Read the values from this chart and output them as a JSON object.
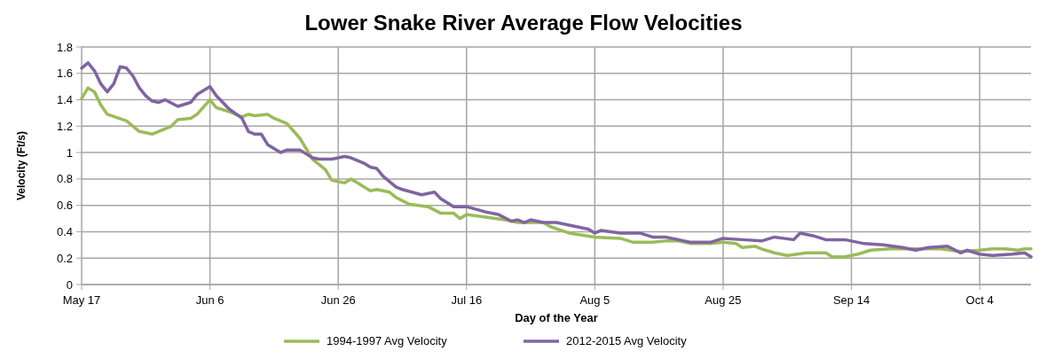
{
  "chart_data": {
    "type": "line",
    "title": "Lower Snake River Average Flow Velocities",
    "xlabel": "Day of the Year",
    "ylabel": "Velocity (Ft/s)",
    "xlim": [
      "--05-17",
      "--10-12"
    ],
    "xticks": [
      {
        "value": "--05-17",
        "label": "May 17"
      },
      {
        "value": "--06-06",
        "label": "Jun 6"
      },
      {
        "value": "--06-26",
        "label": "Jun 26"
      },
      {
        "value": "--07-16",
        "label": "Jul 16"
      },
      {
        "value": "--08-05",
        "label": "Aug 5"
      },
      {
        "value": "--08-25",
        "label": "Aug 25"
      },
      {
        "value": "--09-14",
        "label": "Sep 14"
      },
      {
        "value": "--10-04",
        "label": "Oct 4"
      }
    ],
    "ylim": [
      0,
      1.8
    ],
    "yticks": [
      0,
      0.2,
      0.4,
      0.6,
      0.8,
      1,
      1.2,
      1.4,
      1.6,
      1.8
    ],
    "grid": true,
    "legend": "bottom",
    "marker": "none",
    "line_style": "solid",
    "series": [
      {
        "name": "1994-1997 Avg Velocity",
        "color": "#9bbb59",
        "x": [
          "--05-17",
          "--05-18",
          "--05-19",
          "--05-20",
          "--05-21",
          "--05-24",
          "--05-26",
          "--05-28",
          "--05-30",
          "--05-31",
          "--06-01",
          "--06-03",
          "--06-04",
          "--06-06",
          "--06-07",
          "--06-09",
          "--06-11",
          "--06-12",
          "--06-13",
          "--06-15",
          "--06-16",
          "--06-18",
          "--06-20",
          "--06-22",
          "--06-24",
          "--06-25",
          "--06-27",
          "--06-28",
          "--06-29",
          "--07-01",
          "--07-02",
          "--07-04",
          "--07-05",
          "--07-07",
          "--07-10",
          "--07-12",
          "--07-14",
          "--07-15",
          "--07-16",
          "--07-19",
          "--07-22",
          "--07-24",
          "--07-28",
          "--07-29",
          "--08-01",
          "--08-05",
          "--08-09",
          "--08-11",
          "--08-14",
          "--08-16",
          "--08-18",
          "--08-20",
          "--08-23",
          "--08-25",
          "--08-27",
          "--08-28",
          "--08-30",
          "--08-31",
          "--09-02",
          "--09-04",
          "--09-07",
          "--09-10",
          "--09-11",
          "--09-13",
          "--09-15",
          "--09-17",
          "--09-20",
          "--09-24",
          "--09-28",
          "--10-01",
          "--10-04",
          "--10-06",
          "--10-08",
          "--10-10",
          "--10-11",
          "--10-12"
        ],
        "values": [
          1.41,
          1.49,
          1.46,
          1.36,
          1.29,
          1.24,
          1.16,
          1.14,
          1.18,
          1.2,
          1.25,
          1.26,
          1.29,
          1.4,
          1.34,
          1.31,
          1.27,
          1.29,
          1.28,
          1.29,
          1.26,
          1.22,
          1.11,
          0.95,
          0.87,
          0.79,
          0.77,
          0.8,
          0.77,
          0.71,
          0.72,
          0.7,
          0.66,
          0.61,
          0.59,
          0.54,
          0.54,
          0.5,
          0.53,
          0.51,
          0.49,
          0.47,
          0.47,
          0.44,
          0.39,
          0.36,
          0.35,
          0.32,
          0.32,
          0.33,
          0.33,
          0.31,
          0.31,
          0.32,
          0.31,
          0.28,
          0.29,
          0.27,
          0.24,
          0.22,
          0.24,
          0.24,
          0.21,
          0.21,
          0.23,
          0.26,
          0.27,
          0.27,
          0.27,
          0.25,
          0.26,
          0.27,
          0.27,
          0.26,
          0.27,
          0.27
        ]
      },
      {
        "name": "2012-2015 Avg Velocity",
        "color": "#8064a2",
        "x": [
          "--05-17",
          "--05-18",
          "--05-19",
          "--05-20",
          "--05-21",
          "--05-22",
          "--05-23",
          "--05-24",
          "--05-25",
          "--05-26",
          "--05-27",
          "--05-28",
          "--05-29",
          "--05-30",
          "--06-01",
          "--06-03",
          "--06-04",
          "--06-06",
          "--06-07",
          "--06-09",
          "--06-11",
          "--06-12",
          "--06-13",
          "--06-14",
          "--06-15",
          "--06-17",
          "--06-18",
          "--06-20",
          "--06-22",
          "--06-23",
          "--06-25",
          "--06-27",
          "--06-28",
          "--06-30",
          "--07-01",
          "--07-02",
          "--07-03",
          "--07-05",
          "--07-06",
          "--07-09",
          "--07-11",
          "--07-12",
          "--07-14",
          "--07-16",
          "--07-19",
          "--07-21",
          "--07-23",
          "--07-24",
          "--07-25",
          "--07-26",
          "--07-28",
          "--07-30",
          "--08-02",
          "--08-04",
          "--08-05",
          "--08-06",
          "--08-09",
          "--08-12",
          "--08-14",
          "--08-16",
          "--08-18",
          "--08-20",
          "--08-23",
          "--08-25",
          "--08-28",
          "--08-31",
          "--09-02",
          "--09-05",
          "--09-06",
          "--09-08",
          "--09-10",
          "--09-13",
          "--09-14",
          "--09-16",
          "--09-19",
          "--09-22",
          "--09-24",
          "--09-26",
          "--09-29",
          "--10-01",
          "--10-02",
          "--10-04",
          "--10-06",
          "--10-09",
          "--10-11",
          "--10-12"
        ],
        "values": [
          1.64,
          1.68,
          1.62,
          1.52,
          1.46,
          1.52,
          1.65,
          1.64,
          1.58,
          1.49,
          1.43,
          1.39,
          1.38,
          1.4,
          1.35,
          1.38,
          1.44,
          1.5,
          1.43,
          1.33,
          1.26,
          1.16,
          1.14,
          1.14,
          1.06,
          1.0,
          1.02,
          1.02,
          0.96,
          0.95,
          0.95,
          0.97,
          0.96,
          0.92,
          0.89,
          0.88,
          0.82,
          0.74,
          0.72,
          0.68,
          0.7,
          0.65,
          0.59,
          0.59,
          0.55,
          0.53,
          0.48,
          0.49,
          0.47,
          0.49,
          0.47,
          0.47,
          0.44,
          0.42,
          0.39,
          0.41,
          0.39,
          0.39,
          0.36,
          0.36,
          0.34,
          0.32,
          0.32,
          0.35,
          0.34,
          0.33,
          0.36,
          0.34,
          0.39,
          0.37,
          0.34,
          0.34,
          0.33,
          0.31,
          0.3,
          0.28,
          0.26,
          0.28,
          0.29,
          0.24,
          0.26,
          0.23,
          0.22,
          0.23,
          0.24,
          0.21
        ]
      }
    ]
  }
}
